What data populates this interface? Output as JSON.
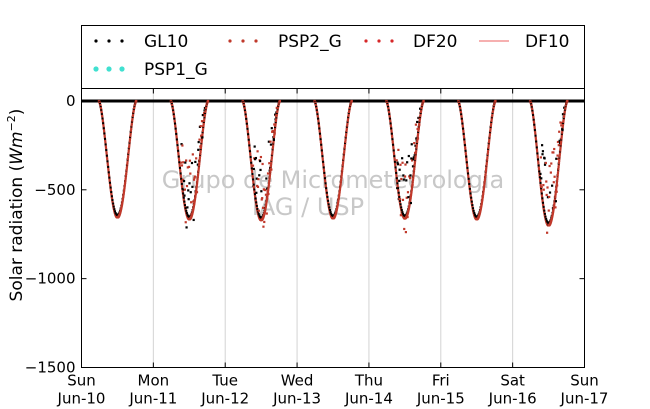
{
  "chart_data": {
    "type": "scatter",
    "ylabel_prefix": "Solar radiation (",
    "ylabel_unit": "Wm",
    "ylabel_exp": "−2",
    "ylabel_suffix": ")",
    "ylim": [
      -1500,
      70
    ],
    "yticks": [
      0,
      -500,
      -1000,
      -1500
    ],
    "ytick_labels": [
      "0",
      "−500",
      "−1000",
      "−1500"
    ],
    "xlim": [
      "2018-06-10",
      "2018-06-17"
    ],
    "xticks": [
      {
        "day": "Sun",
        "date": "Jun-10"
      },
      {
        "day": "Mon",
        "date": "Jun-11"
      },
      {
        "day": "Tue",
        "date": "Jun-12"
      },
      {
        "day": "Wed",
        "date": "Jun-13"
      },
      {
        "day": "Thu",
        "date": "Jun-14"
      },
      {
        "day": "Fri",
        "date": "Jun-15"
      },
      {
        "day": "Sat",
        "date": "Jun-16"
      },
      {
        "day": "Sun",
        "date": "Jun-17"
      }
    ],
    "grid_x": true,
    "grid_y": false,
    "zero_line": true,
    "legend_position": "top",
    "watermark": [
      "Grupo de Micrometeorologia",
      "IAG / USP"
    ],
    "daily_minimum": [
      {
        "date": "Jun-10",
        "value": -655
      },
      {
        "date": "Jun-11",
        "value": -665
      },
      {
        "date": "Jun-12",
        "value": -670
      },
      {
        "date": "Jun-13",
        "value": -660
      },
      {
        "date": "Jun-14",
        "value": -660
      },
      {
        "date": "Jun-15",
        "value": -665
      },
      {
        "date": "Jun-16",
        "value": -700
      }
    ],
    "series": [
      {
        "name": "GL10",
        "color": "#000000",
        "marker": "dot"
      },
      {
        "name": "PSP2_G",
        "color": "#c0392b",
        "marker": "dot"
      },
      {
        "name": "DF20",
        "color": "#d62728",
        "marker": "dot"
      },
      {
        "name": "DF10",
        "color": "#f08080",
        "marker": "line"
      },
      {
        "name": "PSP1_G",
        "color": "#40e0d0",
        "marker": "dot"
      }
    ]
  }
}
